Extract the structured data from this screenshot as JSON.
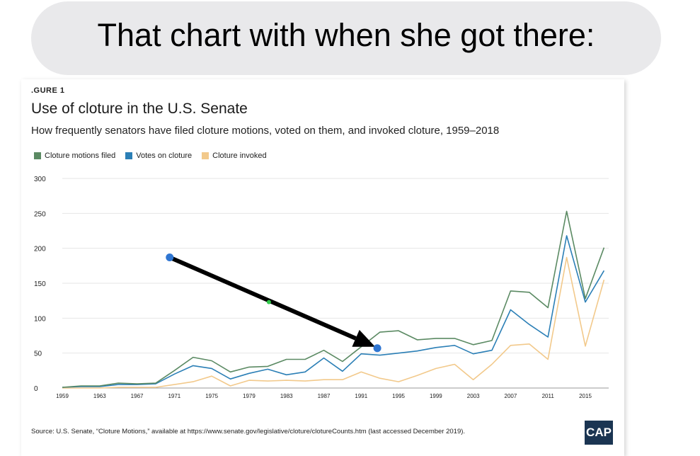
{
  "bubble": {
    "text": "That chart with when she got there:"
  },
  "figure": {
    "label": ".GURE 1",
    "title": "Use of cloture in the U.S. Senate",
    "subtitle": "How frequently senators have filed cloture motions, voted on them, and invoked cloture, 1959–2018",
    "source": "Source: U.S. Senate, “Cloture Motions,” available at https://www.senate.gov/legislative/cloture/clotureCounts.htm (last accessed December 2019).",
    "logo": "CAP"
  },
  "colors": {
    "filed": "#5b8a63",
    "votes": "#2b7fb6",
    "invoked": "#f2c98b",
    "arrow": "#000000",
    "marker": "#2f76d2",
    "mid_marker": "#31c94a"
  },
  "chart_data": {
    "type": "line",
    "title": "Use of cloture in the U.S. Senate",
    "subtitle": "How frequently senators have filed cloture motions, voted on them, and invoked cloture, 1959–2018",
    "xlabel": "",
    "ylabel": "",
    "ylim": [
      0,
      300
    ],
    "yticks": [
      0,
      50,
      100,
      150,
      200,
      250,
      300
    ],
    "xticks": [
      1959,
      1963,
      1967,
      1971,
      1975,
      1979,
      1983,
      1987,
      1991,
      1995,
      1999,
      2003,
      2007,
      2011,
      2015
    ],
    "grid": true,
    "legend_position": "top-left",
    "x": [
      1959,
      1961,
      1963,
      1965,
      1967,
      1969,
      1971,
      1973,
      1975,
      1977,
      1979,
      1981,
      1983,
      1985,
      1987,
      1989,
      1991,
      1993,
      1995,
      1997,
      1999,
      2001,
      2003,
      2005,
      2007,
      2009,
      2011,
      2013,
      2015,
      2017
    ],
    "series": [
      {
        "name": "Cloture motions filed",
        "color": "#5b8a63",
        "values": [
          1,
          3,
          3,
          7,
          6,
          7,
          25,
          44,
          39,
          23,
          30,
          31,
          41,
          41,
          54,
          38,
          59,
          80,
          82,
          69,
          71,
          71,
          62,
          68,
          139,
          137,
          115,
          253,
          128,
          201
        ]
      },
      {
        "name": "Votes on cloture",
        "color": "#2b7fb6",
        "values": [
          1,
          2,
          2,
          5,
          5,
          6,
          20,
          32,
          28,
          13,
          21,
          27,
          19,
          23,
          43,
          24,
          49,
          47,
          50,
          53,
          58,
          61,
          49,
          54,
          112,
          91,
          73,
          218,
          123,
          168
        ]
      },
      {
        "name": "Cloture invoked",
        "color": "#f2c98b",
        "values": [
          0,
          0,
          0,
          1,
          1,
          1,
          5,
          9,
          17,
          3,
          11,
          10,
          11,
          10,
          12,
          12,
          23,
          14,
          9,
          18,
          28,
          34,
          12,
          34,
          61,
          63,
          41,
          187,
          60,
          155
        ]
      }
    ],
    "annotations": [
      {
        "type": "arrow",
        "from_year": 1970.5,
        "from_value": 187,
        "to_year": 1992.5,
        "to_value": 59
      }
    ]
  }
}
